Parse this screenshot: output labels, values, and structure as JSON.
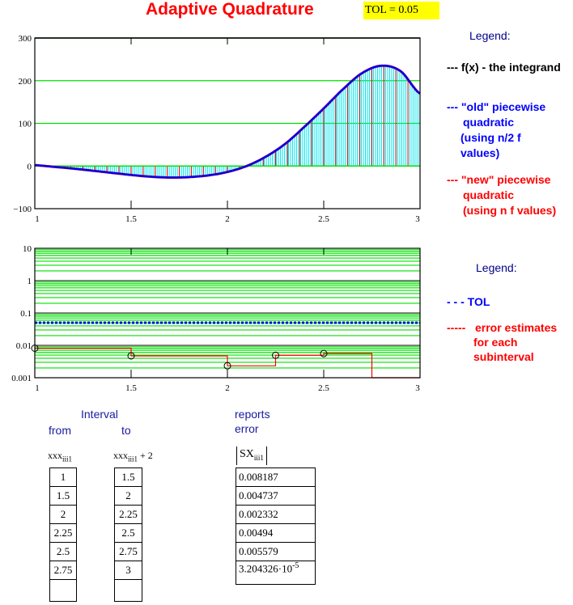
{
  "title": "Adaptive Quadrature",
  "tol_label": "TOL = 0.05",
  "legend1": {
    "heading": "Legend:",
    "items": [
      {
        "text": "--- f(x) - the integrand",
        "color": "#000000"
      },
      {
        "text": "--- \"old\" piecewise quadratic (using n/2 f values)",
        "color": "#0000ff"
      },
      {
        "text": "--- \"new\" piecewise quadratic (using n f values)",
        "color": "#ff0000"
      }
    ],
    "lines": [
      "--- f(x) - the integrand",
      "--- \"old\" piecewise",
      "quadratic",
      "(using n/2 f",
      "values)",
      "--- \"new\" piecewise",
      "quadratic",
      "(using n f values)"
    ]
  },
  "legend2": {
    "heading": "Legend:",
    "lines": [
      "- - -   TOL",
      "-----   error estimates",
      "for each",
      "subinterval"
    ]
  },
  "chart_data": [
    {
      "type": "line",
      "title": "",
      "xlim": [
        1,
        3
      ],
      "ylim": [
        -100,
        300
      ],
      "xticks": [
        "1",
        "1.5",
        "2",
        "2.5",
        "3"
      ],
      "yticks": [
        "300",
        "200",
        "100",
        "0",
        "−100"
      ],
      "series": [
        {
          "name": "f(x)",
          "x": [
            1,
            1.1,
            1.2,
            1.3,
            1.4,
            1.5,
            1.6,
            1.7,
            1.8,
            1.9,
            2.0,
            2.1,
            2.2,
            2.3,
            2.4,
            2.5,
            2.6,
            2.7,
            2.8,
            2.9,
            3.0
          ],
          "y": [
            2,
            -2,
            -6,
            -11,
            -16,
            -21,
            -25,
            -27,
            -26,
            -22,
            -14,
            0,
            22,
            52,
            92,
            135,
            180,
            218,
            235,
            222,
            170
          ]
        }
      ]
    },
    {
      "type": "line",
      "yscale": "log",
      "xlim": [
        1,
        3
      ],
      "ylim": [
        0.001,
        10
      ],
      "xticks": [
        "1",
        "1.5",
        "2",
        "2.5",
        "3"
      ],
      "yticks": [
        "10",
        "1",
        "0.1",
        "0.01",
        "0.001"
      ],
      "tol": 0.05,
      "series": [
        {
          "name": "error estimates",
          "x": [
            1,
            1.5,
            2,
            2.25,
            2.5,
            2.75
          ],
          "y": [
            0.008187,
            0.004737,
            0.002332,
            0.00494,
            0.005579,
            3.204326e-05
          ]
        }
      ]
    }
  ],
  "table": {
    "interval_label": "Interval",
    "from_label": "from",
    "to_label": "to",
    "reports_label": "reports",
    "error_label": "error",
    "from_var": "xxx",
    "from_sub": "iii1",
    "to_var": "xxx",
    "to_sub": "iii1",
    "to_suffix": "+ 2",
    "err_var": "SX",
    "err_sub": "iii1",
    "from": [
      "1",
      "1.5",
      "2",
      "2.25",
      "2.5",
      "2.75"
    ],
    "to": [
      "1.5",
      "2",
      "2.25",
      "2.5",
      "2.75",
      "3"
    ],
    "errors": [
      "0.008187",
      "0.004737",
      "0.002332",
      "0.00494",
      "0.005579",
      "3.204326·10"
    ],
    "last_exp": "-5"
  }
}
